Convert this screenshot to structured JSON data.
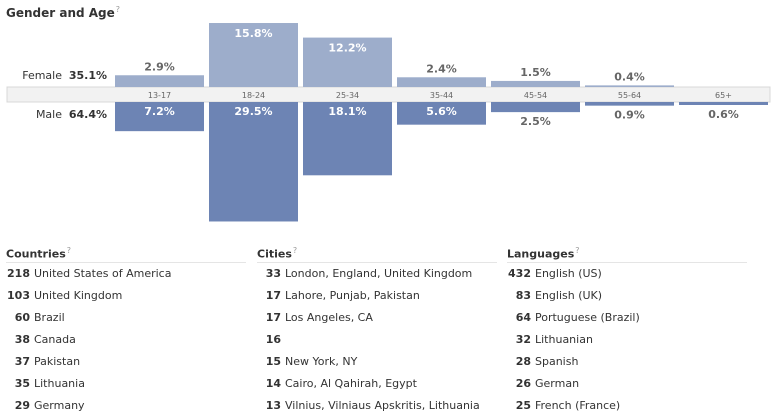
{
  "title": "Gender and Age",
  "help_mark": "?",
  "chart_data": {
    "type": "bar",
    "title": "Gender and Age",
    "categories": [
      "13-17",
      "18-24",
      "25-34",
      "35-44",
      "45-54",
      "55-64",
      "65+"
    ],
    "series": [
      {
        "name": "Female",
        "total": "35.1%",
        "values": [
          2.9,
          15.8,
          12.2,
          2.4,
          1.5,
          0.4,
          null
        ],
        "color": "#9dadcb"
      },
      {
        "name": "Male",
        "total": "64.4%",
        "values": [
          7.2,
          29.5,
          18.1,
          5.6,
          2.5,
          0.9,
          0.6
        ],
        "color": "#6d84b4"
      }
    ],
    "value_suffix": "%"
  },
  "countries": {
    "heading": "Countries",
    "items": [
      {
        "count": "218",
        "name": "United States of America"
      },
      {
        "count": "103",
        "name": "United Kingdom"
      },
      {
        "count": "60",
        "name": "Brazil"
      },
      {
        "count": "38",
        "name": "Canada"
      },
      {
        "count": "37",
        "name": "Pakistan"
      },
      {
        "count": "35",
        "name": "Lithuania"
      },
      {
        "count": "29",
        "name": "Germany"
      }
    ]
  },
  "cities": {
    "heading": "Cities",
    "items": [
      {
        "count": "33",
        "name": "London, England, United Kingdom"
      },
      {
        "count": "17",
        "name": "Lahore, Punjab, Pakistan"
      },
      {
        "count": "17",
        "name": "Los Angeles, CA"
      },
      {
        "count": "16",
        "name": ""
      },
      {
        "count": "15",
        "name": "New York, NY"
      },
      {
        "count": "14",
        "name": "Cairo, Al Qahirah, Egypt"
      },
      {
        "count": "13",
        "name": "Vilnius, Vilniaus Apskritis, Lithuania"
      }
    ]
  },
  "languages": {
    "heading": "Languages",
    "items": [
      {
        "count": "432",
        "name": "English (US)"
      },
      {
        "count": "83",
        "name": "English (UK)"
      },
      {
        "count": "64",
        "name": "Portuguese (Brazil)"
      },
      {
        "count": "32",
        "name": "Lithuanian"
      },
      {
        "count": "28",
        "name": "Spanish"
      },
      {
        "count": "26",
        "name": "German"
      },
      {
        "count": "25",
        "name": "French (France)"
      }
    ]
  }
}
